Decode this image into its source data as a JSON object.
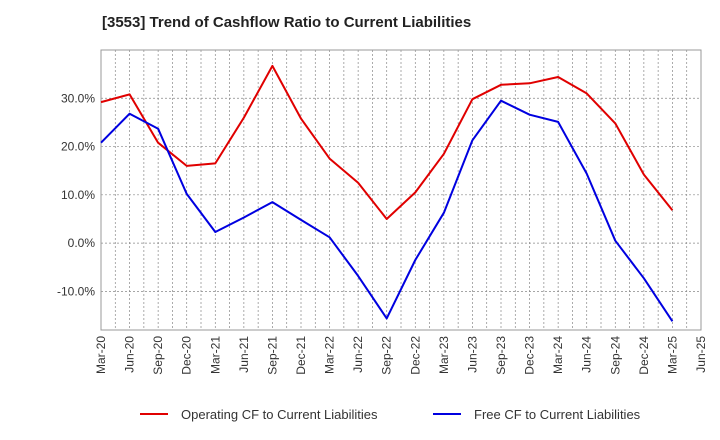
{
  "chart_data": {
    "type": "line",
    "title": "[3553]  Trend of Cashflow Ratio to Current Liabilities",
    "xlabel": "",
    "ylabel": "",
    "ylim": [
      -18,
      40
    ],
    "yticks": [
      30,
      20,
      10,
      0,
      -10
    ],
    "ytick_labels": [
      "30.0%",
      "20.0%",
      "10.0%",
      "0.0%",
      "-10.0%"
    ],
    "x_labels": [
      "Mar-20",
      "Jun-20",
      "Sep-20",
      "Dec-20",
      "Mar-21",
      "Jun-21",
      "Sep-21",
      "Dec-21",
      "Mar-22",
      "Jun-22",
      "Sep-22",
      "Dec-22",
      "Mar-23",
      "Jun-23",
      "Sep-23",
      "Dec-23",
      "Mar-24",
      "Jun-24",
      "Sep-24",
      "Dec-24",
      "Mar-25",
      "Jun-25"
    ],
    "grid": true,
    "legend_position": "bottom",
    "series": [
      {
        "name": "Operating CF to Current Liabilities",
        "color": "#e00000",
        "values": [
          29.2,
          30.8,
          20.8,
          16.0,
          16.5,
          26.0,
          36.7,
          25.8,
          17.5,
          12.5,
          5.0,
          10.5,
          18.5,
          29.8,
          32.8,
          33.1,
          34.4,
          31.0,
          24.8,
          14.2,
          6.8,
          null
        ]
      },
      {
        "name": "Free CF to Current Liabilities",
        "color": "#0000e0",
        "values": [
          20.8,
          26.8,
          23.7,
          10.2,
          2.3,
          5.3,
          8.5,
          4.8,
          1.2,
          -6.8,
          -15.6,
          -3.5,
          6.3,
          21.3,
          29.5,
          26.6,
          25.1,
          14.4,
          0.5,
          -7.3,
          -16.2,
          null
        ]
      }
    ]
  }
}
